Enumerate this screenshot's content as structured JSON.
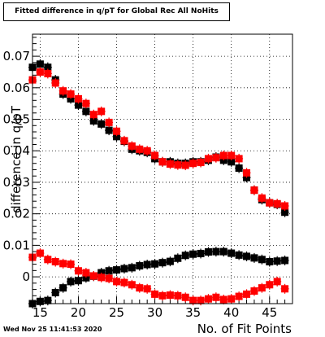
{
  "chart_data": {
    "type": "scatter",
    "title": "Fitted difference in q/pT for Global Rec All NoHits",
    "xlabel": "No. of Fit Points",
    "ylabel": "difference in q/pT",
    "xlim": [
      14,
      48
    ],
    "ylim": [
      -0.0085,
      0.077
    ],
    "grid": true,
    "x_ticks": [
      15,
      20,
      25,
      30,
      35,
      40,
      45
    ],
    "y_ticks": [
      0,
      0.01,
      0.02,
      0.03,
      0.04,
      0.05,
      0.06,
      0.07
    ],
    "y_tick_labels": [
      "0",
      "0.01",
      "0.02",
      "0.03",
      "0.04",
      "0.05",
      "0.06",
      "0.07"
    ],
    "timestamp": "Wed Nov 25 11:41:53 2020",
    "series": [
      {
        "color": "#000000",
        "x": [
          14,
          15,
          16,
          17,
          18,
          19,
          20,
          21,
          22,
          23,
          24,
          25,
          26,
          27,
          28,
          29,
          30,
          31,
          32,
          33,
          34,
          35,
          36,
          37,
          38,
          39,
          40,
          41,
          42,
          43,
          44,
          45,
          46,
          47
        ],
        "y": [
          0.0665,
          0.0675,
          0.0665,
          0.0625,
          0.058,
          0.0565,
          0.0545,
          0.0525,
          0.0495,
          0.0485,
          0.0465,
          0.0445,
          0.043,
          0.0405,
          0.04,
          0.0395,
          0.0375,
          0.0365,
          0.0365,
          0.036,
          0.036,
          0.0365,
          0.0365,
          0.037,
          0.038,
          0.037,
          0.0365,
          0.0345,
          0.0315,
          0.0275,
          0.0245,
          0.0235,
          0.023,
          0.0205
        ]
      },
      {
        "color": "#ff0000",
        "x": [
          14,
          15,
          16,
          17,
          18,
          19,
          20,
          21,
          22,
          23,
          24,
          25,
          26,
          27,
          28,
          29,
          30,
          31,
          32,
          33,
          34,
          35,
          36,
          37,
          38,
          39,
          40,
          41,
          42,
          43,
          44,
          45,
          46,
          47
        ],
        "y": [
          0.0625,
          0.065,
          0.0645,
          0.0615,
          0.059,
          0.058,
          0.0565,
          0.055,
          0.0515,
          0.0525,
          0.049,
          0.0462,
          0.0432,
          0.0415,
          0.0405,
          0.04,
          0.0385,
          0.0365,
          0.0358,
          0.0355,
          0.0354,
          0.036,
          0.0363,
          0.0375,
          0.0378,
          0.0385,
          0.0385,
          0.0375,
          0.033,
          0.0275,
          0.025,
          0.0235,
          0.0232,
          0.0225
        ]
      },
      {
        "color": "#000000",
        "x": [
          14,
          15,
          16,
          17,
          18,
          19,
          20,
          21,
          22,
          23,
          24,
          25,
          26,
          27,
          28,
          29,
          30,
          31,
          32,
          33,
          34,
          35,
          36,
          37,
          38,
          39,
          40,
          41,
          42,
          43,
          44,
          45,
          46,
          47
        ],
        "y": [
          -0.0085,
          -0.0078,
          -0.0075,
          -0.005,
          -0.0035,
          -0.0015,
          -0.0012,
          -0.0003,
          0.0002,
          0.0013,
          0.0019,
          0.0022,
          0.0026,
          0.0029,
          0.0035,
          0.0039,
          0.0041,
          0.0045,
          0.0049,
          0.0059,
          0.0068,
          0.0072,
          0.0074,
          0.0079,
          0.008,
          0.008,
          0.0075,
          0.0069,
          0.0065,
          0.006,
          0.0055,
          0.0048,
          0.005,
          0.0052
        ]
      },
      {
        "color": "#ff0000",
        "x": [
          14,
          15,
          16,
          17,
          18,
          19,
          20,
          21,
          22,
          23,
          24,
          25,
          26,
          27,
          28,
          29,
          30,
          31,
          32,
          33,
          34,
          35,
          36,
          37,
          38,
          39,
          40,
          41,
          42,
          43,
          44,
          45,
          46,
          47
        ],
        "y": [
          0.0062,
          0.0075,
          0.0055,
          0.0048,
          0.0042,
          0.004,
          0.0019,
          0.0013,
          0.0003,
          -0.0002,
          -0.0005,
          -0.0015,
          -0.0018,
          -0.0025,
          -0.0035,
          -0.0038,
          -0.0055,
          -0.006,
          -0.0058,
          -0.006,
          -0.0065,
          -0.0075,
          -0.0075,
          -0.007,
          -0.0065,
          -0.0072,
          -0.007,
          -0.0062,
          -0.0055,
          -0.0045,
          -0.0035,
          -0.0025,
          -0.0015,
          -0.0038
        ]
      }
    ]
  }
}
